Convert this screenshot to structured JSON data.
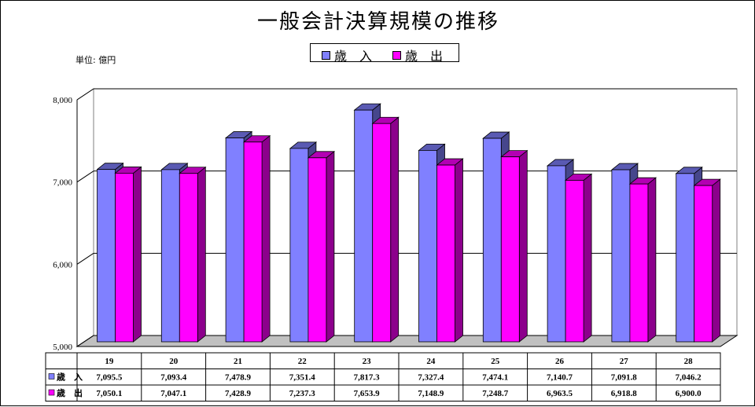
{
  "page": {
    "title": "一般会計決算規模の推移",
    "unit_label": "単位: 億円"
  },
  "legend": [
    {
      "label": "歳　入",
      "color": "#8080ff"
    },
    {
      "label": "歳　出",
      "color": "#ff00ff"
    }
  ],
  "chart_data": {
    "type": "bar",
    "title": "一般会計決算規模の推移",
    "categories": [
      "19",
      "20",
      "21",
      "22",
      "23",
      "24",
      "25",
      "26",
      "27",
      "28"
    ],
    "series": [
      {
        "name": "歳　入",
        "color": "#8080ff",
        "values": [
          7095.5,
          7093.4,
          7478.9,
          7351.4,
          7817.3,
          7327.4,
          7474.1,
          7140.7,
          7091.8,
          7046.2
        ],
        "labels": [
          "7,095.5",
          "7,093.4",
          "7,478.9",
          "7,351.4",
          "7,817.3",
          "7,327.4",
          "7,474.1",
          "7,140.7",
          "7,091.8",
          "7,046.2"
        ]
      },
      {
        "name": "歳　出",
        "color": "#ff00ff",
        "values": [
          7050.1,
          7047.1,
          7428.9,
          7237.3,
          7653.9,
          7148.9,
          7248.7,
          6963.5,
          6918.8,
          6900.0
        ],
        "labels": [
          "7,050.1",
          "7,047.1",
          "7,428.9",
          "7,237.3",
          "7,653.9",
          "7,148.9",
          "7,248.7",
          "6,963.5",
          "6,918.8",
          "6,900.0"
        ]
      }
    ],
    "ylim": [
      5000,
      8000
    ],
    "yticks": [
      5000,
      6000,
      7000,
      8000
    ],
    "ytick_labels": [
      "5,000",
      "6,000",
      "7,000",
      "8,000"
    ],
    "grid": true,
    "legend_position": "top-center",
    "data_table": true
  }
}
